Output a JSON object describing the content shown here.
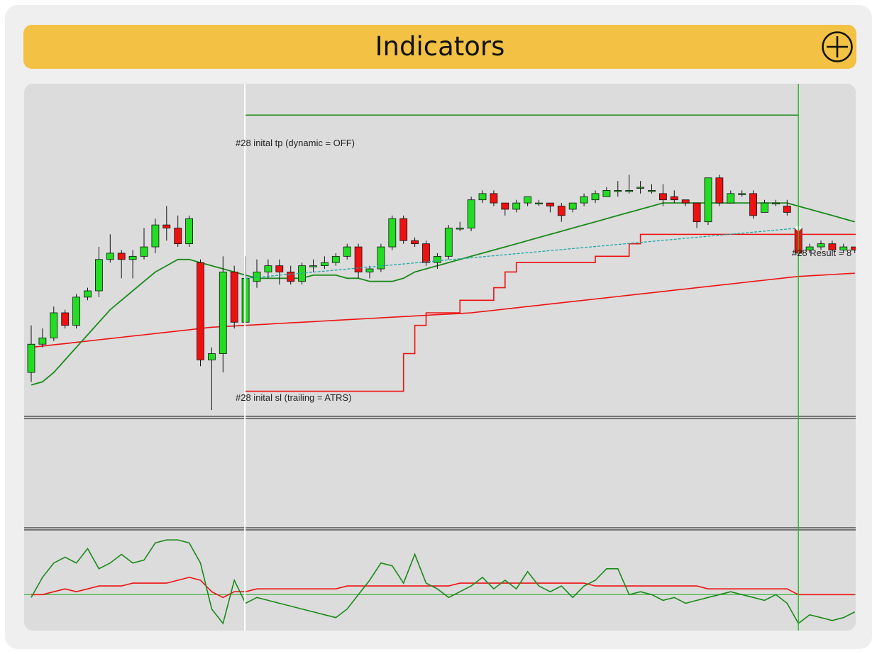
{
  "header": {
    "title": "Indicators",
    "add_icon": "circle-plus-icon"
  },
  "chart": {
    "tp_label": "#28 inital tp (dynamic = OFF)",
    "sl_label": "#28 inital sl (trailing = ATRS)",
    "result_label": "#28 Result = 8",
    "colors": {
      "bull": "#22dd22",
      "bear": "#ee1111",
      "ma_fast": "#1a8a1a",
      "ma_slow": "#ee1111",
      "trade_line": "#20a8a8",
      "cursor_line": "#22bb22",
      "entry_line": "#ffffff"
    }
  },
  "chart_data": {
    "type": "candlestick",
    "candles": [
      [
        5.2,
        5.65,
        5.05,
        5.95
      ],
      [
        5.65,
        5.75,
        5.6,
        5.9
      ],
      [
        5.75,
        6.15,
        5.7,
        6.25
      ],
      [
        6.15,
        5.95,
        5.9,
        6.2
      ],
      [
        5.95,
        6.4,
        5.9,
        6.45
      ],
      [
        6.4,
        6.5,
        6.35,
        6.55
      ],
      [
        6.5,
        7.0,
        6.4,
        7.2
      ],
      [
        7.0,
        7.1,
        6.95,
        7.4
      ],
      [
        7.1,
        7.0,
        6.7,
        7.15
      ],
      [
        7.0,
        7.05,
        6.7,
        7.15
      ],
      [
        7.05,
        7.2,
        7.0,
        7.5
      ],
      [
        7.2,
        7.55,
        7.1,
        7.65
      ],
      [
        7.55,
        7.5,
        7.3,
        7.85
      ],
      [
        7.5,
        7.25,
        7.2,
        7.7
      ],
      [
        7.25,
        7.65,
        7.2,
        7.7
      ],
      [
        6.95,
        5.4,
        5.3,
        7.0
      ],
      [
        5.4,
        5.5,
        4.6,
        5.6
      ],
      [
        5.5,
        6.8,
        5.2,
        7.05
      ],
      [
        6.8,
        6.0,
        5.9,
        6.9
      ],
      [
        6.0,
        6.7,
        6.0,
        7.05
      ],
      [
        6.65,
        6.8,
        6.55,
        7.0
      ],
      [
        6.8,
        6.9,
        6.7,
        7.0
      ],
      [
        6.9,
        6.8,
        6.6,
        7.0
      ],
      [
        6.8,
        6.65,
        6.6,
        6.9
      ],
      [
        6.65,
        6.9,
        6.6,
        6.95
      ],
      [
        6.9,
        6.9,
        6.8,
        7.0
      ],
      [
        6.9,
        6.95,
        6.85,
        7.05
      ],
      [
        6.95,
        7.05,
        6.9,
        7.1
      ],
      [
        7.05,
        7.2,
        7.0,
        7.25
      ],
      [
        7.2,
        6.8,
        6.7,
        7.25
      ],
      [
        6.8,
        6.85,
        6.7,
        6.9
      ],
      [
        6.85,
        7.2,
        6.8,
        7.25
      ],
      [
        7.2,
        7.65,
        7.15,
        7.7
      ],
      [
        7.65,
        7.3,
        7.25,
        7.7
      ],
      [
        7.3,
        7.25,
        7.2,
        7.35
      ],
      [
        7.25,
        6.95,
        6.9,
        7.3
      ],
      [
        6.95,
        7.05,
        6.85,
        7.1
      ],
      [
        7.05,
        7.5,
        7.0,
        7.55
      ],
      [
        7.5,
        7.5,
        7.45,
        7.6
      ],
      [
        7.5,
        7.95,
        7.45,
        8.0
      ],
      [
        7.95,
        8.05,
        7.9,
        8.1
      ],
      [
        8.05,
        7.9,
        7.85,
        8.1
      ],
      [
        7.9,
        7.8,
        7.7,
        7.9
      ],
      [
        7.8,
        7.9,
        7.75,
        7.95
      ],
      [
        7.9,
        8.0,
        7.85,
        8.0
      ],
      [
        7.9,
        7.9,
        7.85,
        7.95
      ],
      [
        7.9,
        7.85,
        7.75,
        7.9
      ],
      [
        7.85,
        7.7,
        7.6,
        7.9
      ],
      [
        7.8,
        7.9,
        7.75,
        7.9
      ],
      [
        7.9,
        8.0,
        7.85,
        8.05
      ],
      [
        7.95,
        8.05,
        7.9,
        8.1
      ],
      [
        8.0,
        8.1,
        8.0,
        8.15
      ],
      [
        8.1,
        8.1,
        8.0,
        8.25
      ],
      [
        8.1,
        8.1,
        8.05,
        8.35
      ],
      [
        8.15,
        8.15,
        8.05,
        8.25
      ],
      [
        8.1,
        8.1,
        8.05,
        8.2
      ],
      [
        8.05,
        7.95,
        7.85,
        8.2
      ],
      [
        8.0,
        7.95,
        7.9,
        8.1
      ],
      [
        7.95,
        7.9,
        7.85,
        7.95
      ],
      [
        7.9,
        7.6,
        7.5,
        7.9
      ],
      [
        7.6,
        8.3,
        7.55,
        8.3
      ],
      [
        8.3,
        7.9,
        7.85,
        8.35
      ],
      [
        7.9,
        8.05,
        7.9,
        8.1
      ],
      [
        8.05,
        8.05,
        8.0,
        8.1
      ],
      [
        8.05,
        7.7,
        7.65,
        8.1
      ],
      [
        7.75,
        7.9,
        7.75,
        7.95
      ],
      [
        7.9,
        7.9,
        7.85,
        7.95
      ],
      [
        7.85,
        7.75,
        7.7,
        7.95
      ],
      [
        7.5,
        7.1,
        7.05,
        7.55
      ],
      [
        7.15,
        7.2,
        7.1,
        7.25
      ],
      [
        7.2,
        7.25,
        7.15,
        7.3
      ],
      [
        7.25,
        7.15,
        7.1,
        7.3
      ],
      [
        7.15,
        7.2,
        7.1,
        7.25
      ],
      [
        7.2,
        7.15,
        7.1,
        7.2
      ]
    ],
    "ma_fast": [
      5.0,
      5.05,
      5.2,
      5.4,
      5.6,
      5.8,
      6.0,
      6.2,
      6.35,
      6.5,
      6.65,
      6.8,
      6.9,
      7.0,
      7.0,
      6.95,
      6.9,
      6.85,
      6.8,
      6.75,
      6.7,
      6.7,
      6.7,
      6.7,
      6.7,
      6.75,
      6.75,
      6.75,
      6.7,
      6.7,
      6.65,
      6.65,
      6.65,
      6.7,
      6.8,
      6.85,
      6.9,
      6.95,
      7.0,
      7.05,
      7.1,
      7.15,
      7.2,
      7.25,
      7.3,
      7.35,
      7.4,
      7.45,
      7.5,
      7.55,
      7.6,
      7.65,
      7.7,
      7.75,
      7.8,
      7.85,
      7.9,
      7.9,
      7.9,
      7.9,
      7.9,
      7.9,
      7.9,
      7.9,
      7.9,
      7.9,
      7.9,
      7.9,
      7.85,
      7.8,
      7.75,
      7.7,
      7.65,
      7.6
    ],
    "ma_slow": [
      5.6,
      5.62,
      5.64,
      5.66,
      5.68,
      5.7,
      5.72,
      5.74,
      5.76,
      5.78,
      5.8,
      5.82,
      5.84,
      5.86,
      5.88,
      5.9,
      5.92,
      5.93,
      5.94,
      5.95,
      5.96,
      5.97,
      5.98,
      5.99,
      6.0,
      6.01,
      6.02,
      6.03,
      6.04,
      6.05,
      6.06,
      6.07,
      6.08,
      6.09,
      6.1,
      6.11,
      6.12,
      6.13,
      6.14,
      6.15,
      6.17,
      6.19,
      6.21,
      6.23,
      6.25,
      6.27,
      6.29,
      6.31,
      6.33,
      6.35,
      6.37,
      6.39,
      6.41,
      6.43,
      6.45,
      6.47,
      6.49,
      6.51,
      6.53,
      6.55,
      6.57,
      6.59,
      6.61,
      6.63,
      6.65,
      6.67,
      6.69,
      6.71,
      6.73,
      6.74,
      6.75,
      6.76,
      6.77,
      6.78
    ],
    "osc_green": [
      -2,
      12,
      22,
      26,
      22,
      32,
      18,
      22,
      28,
      22,
      24,
      36,
      38,
      38,
      36,
      22,
      -10,
      -20,
      10,
      -6,
      -2,
      -4,
      -6,
      -8,
      -10,
      -12,
      -14,
      -16,
      -10,
      0,
      10,
      22,
      20,
      8,
      28,
      8,
      4,
      -2,
      2,
      6,
      12,
      4,
      10,
      4,
      16,
      6,
      2,
      6,
      -2,
      6,
      10,
      18,
      18,
      0,
      2,
      0,
      -4,
      -2,
      -6,
      -4,
      -2,
      0,
      2,
      0,
      -2,
      -4,
      0,
      -6,
      -20,
      -14,
      -16,
      -18,
      -16,
      -12
    ],
    "osc_red": [
      0,
      0,
      2,
      4,
      2,
      4,
      6,
      6,
      6,
      8,
      8,
      8,
      8,
      10,
      12,
      10,
      2,
      -2,
      2,
      2,
      4,
      4,
      4,
      4,
      4,
      4,
      4,
      4,
      6,
      6,
      6,
      6,
      6,
      6,
      6,
      6,
      6,
      6,
      8,
      8,
      8,
      8,
      8,
      8,
      8,
      8,
      8,
      8,
      8,
      8,
      6,
      6,
      6,
      6,
      6,
      6,
      6,
      6,
      6,
      6,
      4,
      4,
      4,
      4,
      4,
      4,
      4,
      4,
      0,
      0,
      0,
      0,
      0,
      0
    ],
    "trade": {
      "entry_index": 19,
      "exit_index": 68,
      "entry_price": 6.7,
      "exit_price": 7.5,
      "tp_price": 9.3,
      "sl_steps": [
        [
          19,
          4.9
        ],
        [
          32,
          4.9
        ],
        [
          33,
          5.5
        ],
        [
          34,
          5.95
        ],
        [
          35,
          6.15
        ],
        [
          38,
          6.35
        ],
        [
          41,
          6.55
        ],
        [
          42,
          6.8
        ],
        [
          43,
          6.95
        ],
        [
          50,
          7.05
        ],
        [
          53,
          7.25
        ],
        [
          54,
          7.4
        ],
        [
          68,
          7.4
        ]
      ]
    },
    "ylim": [
      4.5,
      9.8
    ],
    "osc_ylim": [
      -25,
      45
    ]
  }
}
